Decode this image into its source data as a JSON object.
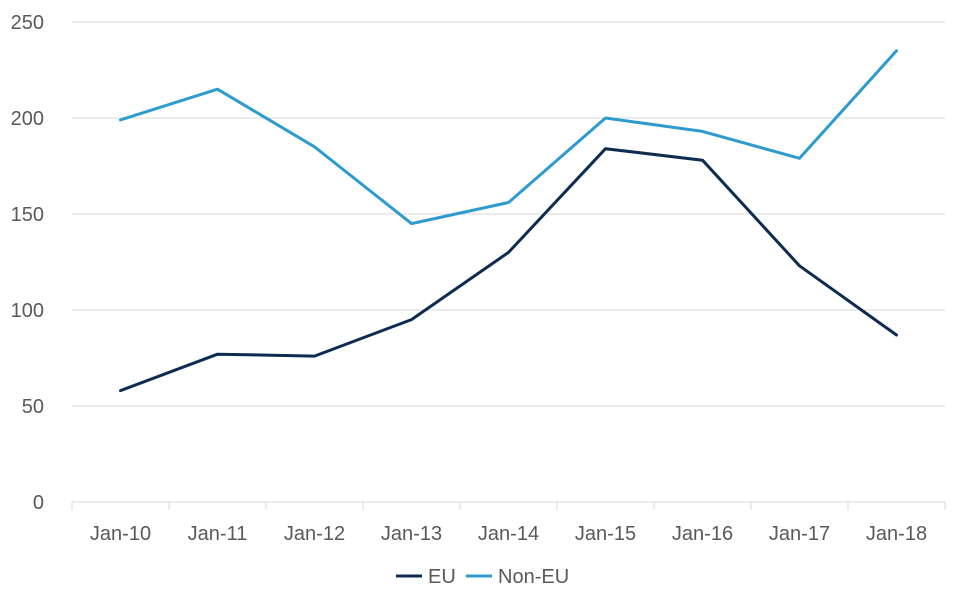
{
  "chart_data": {
    "type": "line",
    "title": "",
    "xlabel": "",
    "ylabel": "",
    "categories": [
      "Jan-10",
      "Jan-11",
      "Jan-12",
      "Jan-13",
      "Jan-14",
      "Jan-15",
      "Jan-16",
      "Jan-17",
      "Jan-18"
    ],
    "ylim": [
      0,
      250
    ],
    "yticks": [
      0,
      50,
      100,
      150,
      200,
      250
    ],
    "grid": true,
    "legend_position": "bottom",
    "series": [
      {
        "name": "EU",
        "color": "#0E2B50",
        "values": [
          58,
          77,
          76,
          95,
          130,
          184,
          178,
          123,
          87
        ]
      },
      {
        "name": "Non-EU",
        "color": "#2E9BCF",
        "values": [
          199,
          215,
          185,
          145,
          156,
          200,
          193,
          179,
          235
        ]
      }
    ]
  }
}
